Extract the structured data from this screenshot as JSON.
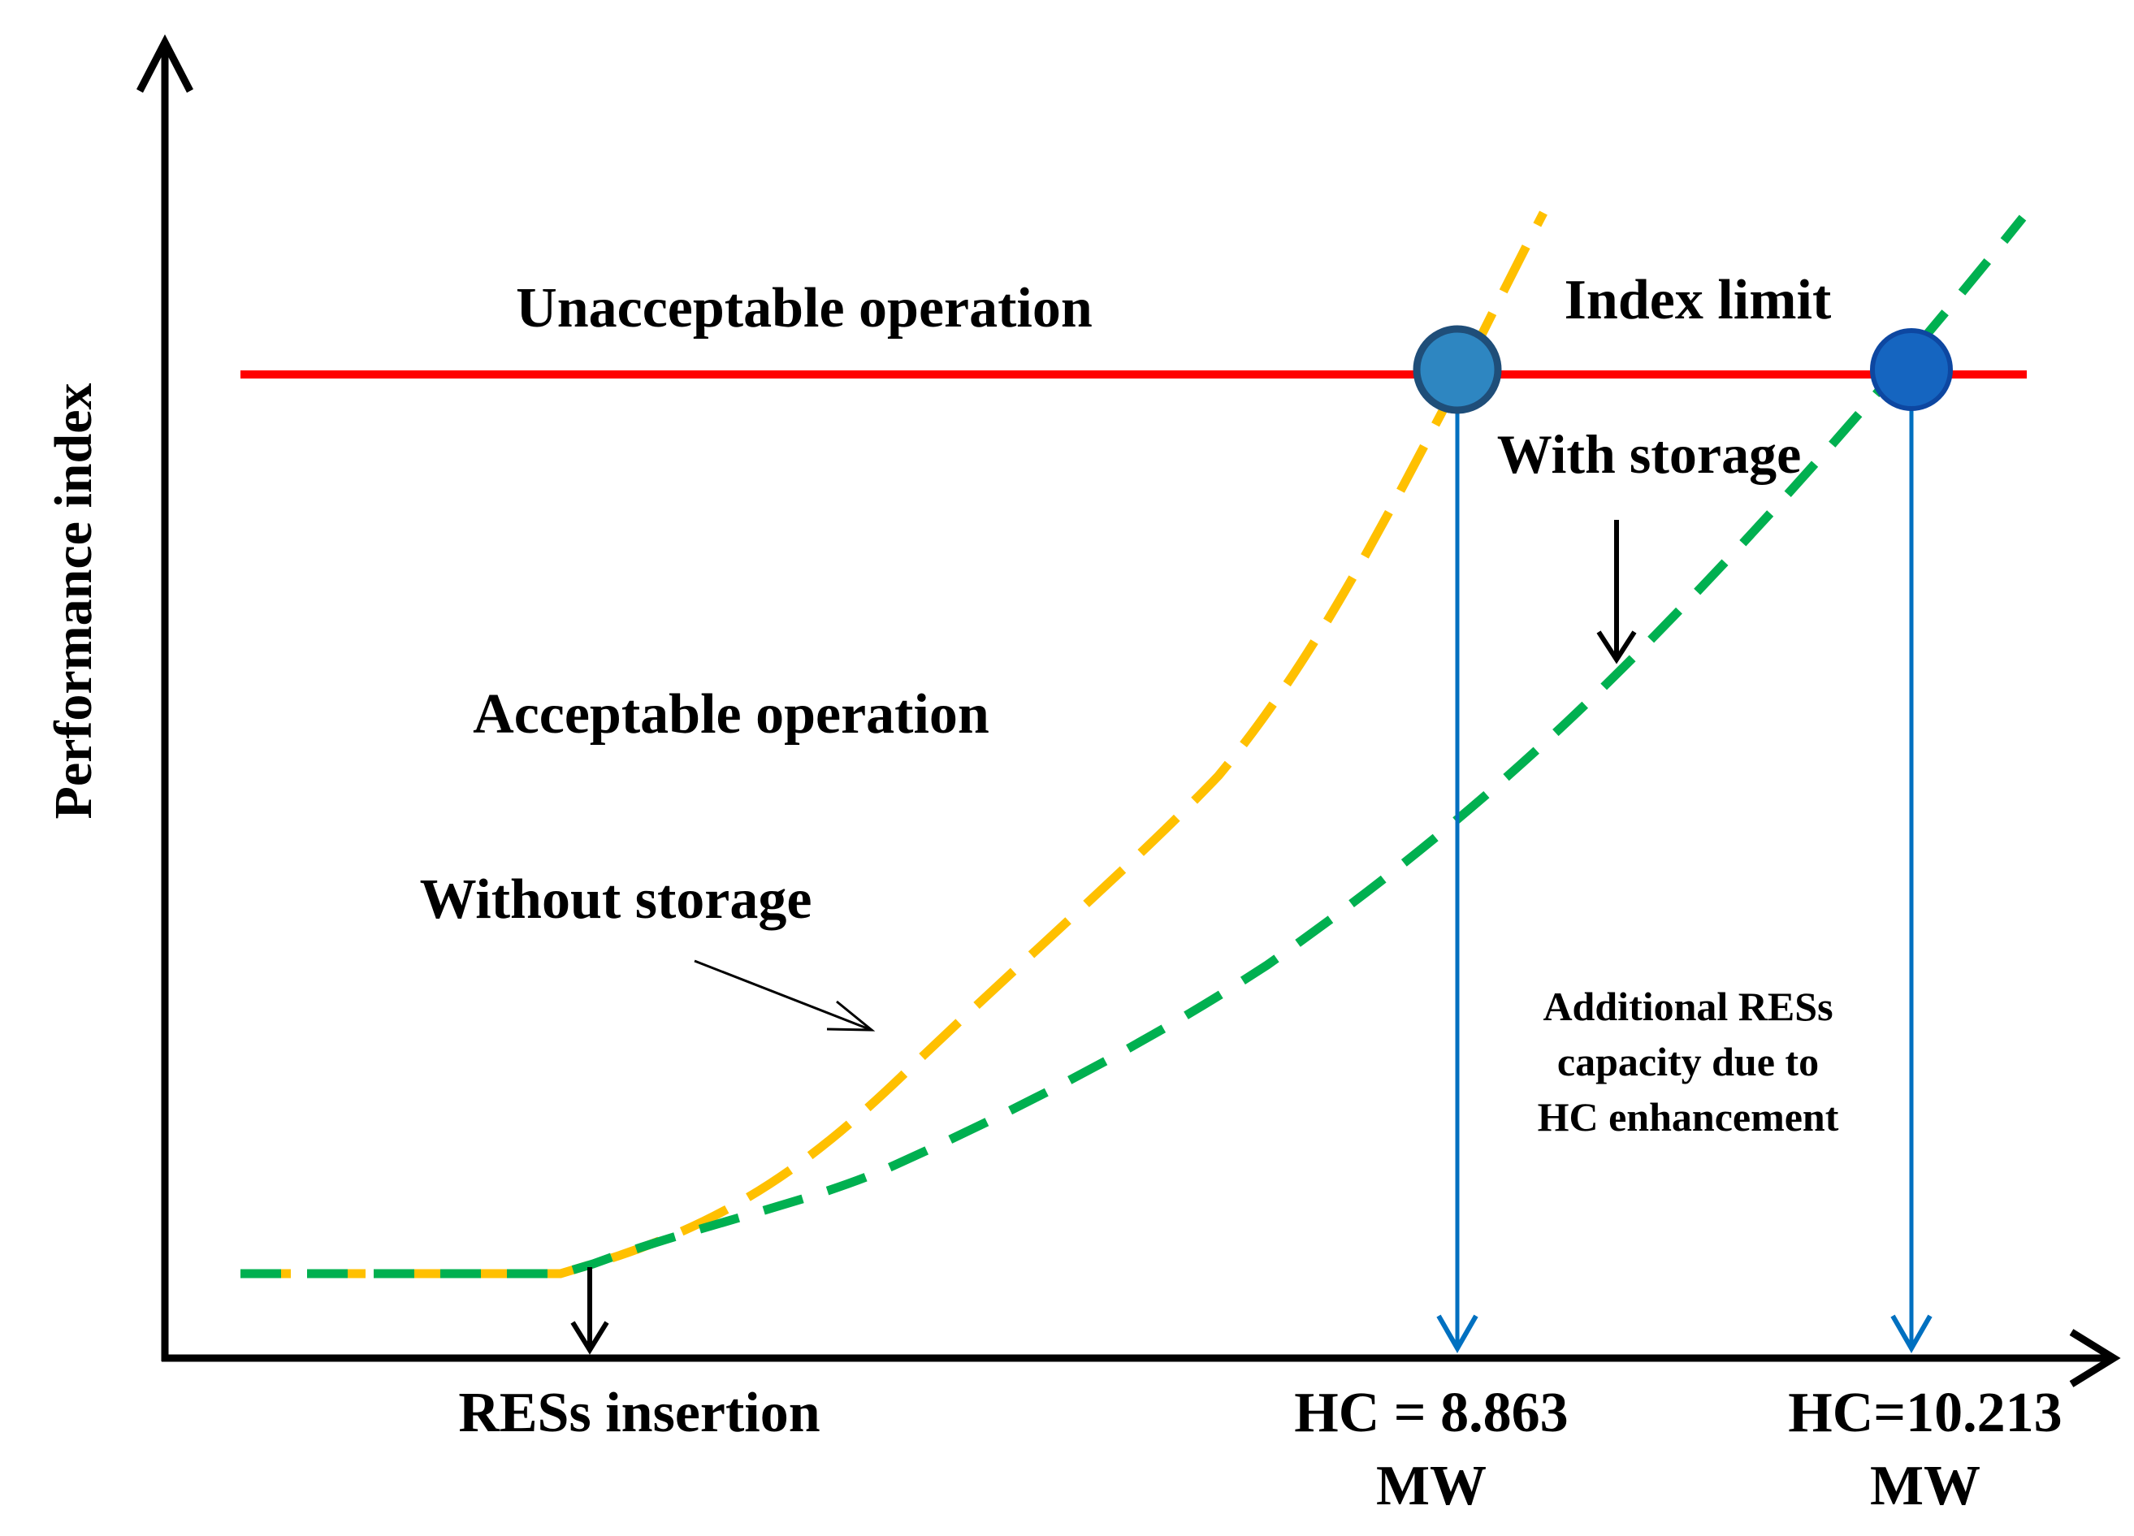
{
  "labels": {
    "y_axis": "Performance index",
    "unacceptable": "Unacceptable operation",
    "acceptable": "Acceptable operation",
    "index_limit": "Index limit",
    "with_storage": "With storage",
    "without_storage": "Without storage",
    "additional": [
      "Additional RESs",
      "capacity due to",
      "HC enhancement"
    ],
    "res_insertion": "RESs insertion",
    "hc1": [
      "HC = 8.863",
      "MW"
    ],
    "hc2": [
      "HC=10.213",
      "MW"
    ]
  },
  "colors": {
    "axis": "#000000",
    "limit_line": "#ff0000",
    "without_storage_curve": "#ffc000",
    "with_storage_curve": "#00b050",
    "hc_markers": "#0070c0",
    "hc1_circle": "#2e86c1",
    "hc1_circle_edge": "#1f4e79",
    "hc2_circle": "#1565c0"
  }
}
